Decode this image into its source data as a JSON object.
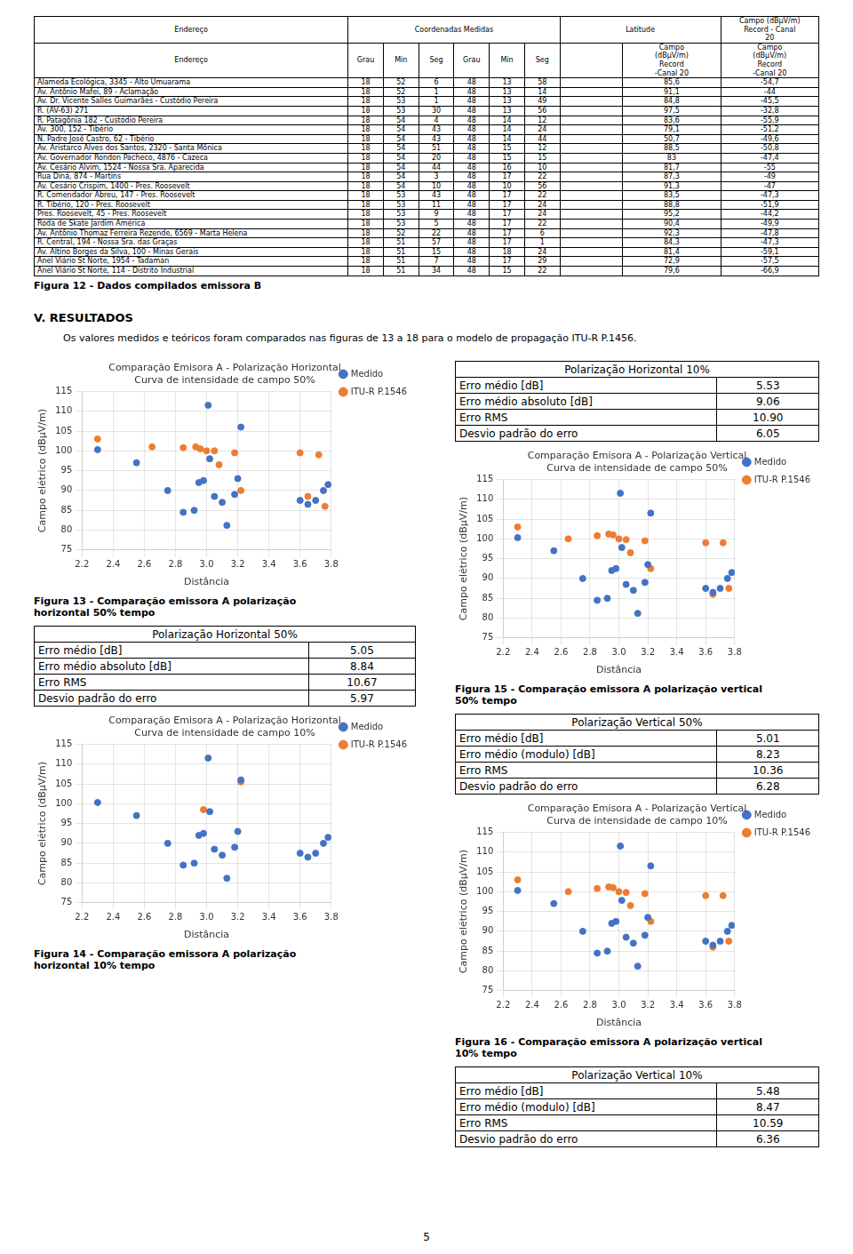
{
  "chart_data": [
    {
      "type": "scatter",
      "title": "Comparação Emisora A - Polarização Horizontal\nCurva de intensidade de campo 50%",
      "x_label": "Distância",
      "y_label": "Campo elétrico (dBμV/m)",
      "xlim": [
        2.2,
        3.8
      ],
      "ylim": [
        75,
        115
      ],
      "xticks": [
        2.2,
        2.4,
        2.6,
        2.8,
        {
          "value": 3.0,
          "label": "3.0"
        },
        3.2,
        3.4,
        3.6,
        3.8
      ],
      "yticks": [
        75,
        80,
        85,
        90,
        95,
        100,
        105,
        110,
        115
      ],
      "grid": true,
      "legend": "right",
      "series": [
        {
          "name": "Medido",
          "color": "#4472c4",
          "marker": "circle",
          "x": [
            2.3,
            2.55,
            2.75,
            2.85,
            2.92,
            2.95,
            2.98,
            3.01,
            3.02,
            3.05,
            3.1,
            3.13,
            3.18,
            3.2,
            3.22,
            3.6,
            3.65,
            3.7,
            3.75,
            3.78
          ],
          "values": [
            100.3,
            97,
            90,
            84.5,
            85,
            92,
            92.5,
            111.5,
            98,
            88.5,
            87,
            81.2,
            89,
            93,
            106,
            87.5,
            86.5,
            87.5,
            90,
            91.5
          ]
        },
        {
          "name": "ITU-R P.1546",
          "color": "#ed7d31",
          "marker": "circle",
          "x": [
            2.3,
            2.65,
            2.85,
            2.93,
            2.96,
            3.0,
            3.05,
            3.08,
            3.18,
            3.22,
            3.6,
            3.65,
            3.72,
            3.76
          ],
          "values": [
            103,
            101,
            100.8,
            101,
            100.5,
            100,
            100,
            96.5,
            99.5,
            90,
            99.5,
            88.5,
            99,
            86
          ]
        }
      ],
      "caption": "Figura 13 - Comparação emissora A polarização\nhorizontal 50% tempo"
    },
    {
      "type": "scatter",
      "title": "Comparação Emisora A - Polarização Horizontal\nCurva de intensidade de campo 10%",
      "x_label": "Distância",
      "y_label": "Campo elétrico (dBμV/m)",
      "xlim": [
        2.2,
        3.8
      ],
      "ylim": [
        75,
        115
      ],
      "xticks": [
        2.2,
        2.4,
        2.6,
        2.8,
        {
          "value": 3.0,
          "label": "3.0"
        },
        3.2,
        3.4,
        3.6,
        3.8
      ],
      "yticks": [
        75,
        80,
        85,
        90,
        95,
        100,
        105,
        110,
        115
      ],
      "grid": true,
      "legend": "right",
      "series": [
        {
          "name": "Medido",
          "color": "#4472c4",
          "marker": "circle",
          "x": [
            2.3,
            2.55,
            2.75,
            2.85,
            2.92,
            2.95,
            2.98,
            3.01,
            3.02,
            3.05,
            3.1,
            3.13,
            3.18,
            3.2,
            3.22,
            3.6,
            3.65,
            3.7,
            3.75,
            3.78
          ],
          "values": [
            100.3,
            97,
            90,
            84.5,
            85,
            92,
            92.5,
            111.5,
            98,
            88.5,
            87,
            81.2,
            89,
            93,
            106,
            87.5,
            86.5,
            87.5,
            90,
            91.5
          ]
        },
        {
          "name": "ITU-R P.1546",
          "color": "#ed7d31",
          "marker": "circle",
          "x": [
            2.98,
            3.22
          ],
          "values": [
            98.5,
            105.5
          ]
        }
      ],
      "caption": "Figura 14 - Comparação emissora A polarização\nhorizontal 10% tempo"
    },
    {
      "type": "scatter",
      "title": "Comparação Emisora A - Polarização Vertical\nCurva de intensidade de campo 50%",
      "x_label": "Distância",
      "y_label": "Campo elétrico (dBμV/m)",
      "xlim": [
        2.2,
        3.8
      ],
      "ylim": [
        75,
        115
      ],
      "xticks": [
        2.2,
        2.4,
        2.6,
        2.8,
        {
          "value": 3.0,
          "label": "3.0"
        },
        3.2,
        3.4,
        3.6,
        3.8
      ],
      "yticks": [
        75,
        80,
        85,
        90,
        95,
        100,
        105,
        110,
        115
      ],
      "grid": true,
      "legend": "right",
      "series": [
        {
          "name": "Medido",
          "color": "#4472c4",
          "marker": "circle",
          "x": [
            2.3,
            2.55,
            2.75,
            2.85,
            2.92,
            2.95,
            2.98,
            3.01,
            3.02,
            3.05,
            3.1,
            3.13,
            3.18,
            3.2,
            3.22,
            3.6,
            3.65,
            3.7,
            3.75,
            3.78
          ],
          "values": [
            100.3,
            97,
            90,
            84.5,
            85,
            92,
            92.5,
            111.5,
            97.8,
            88.5,
            87,
            81.2,
            89,
            93.5,
            106.5,
            87.5,
            86.5,
            87.5,
            90,
            91.5
          ]
        },
        {
          "name": "ITU-R P.1546",
          "color": "#ed7d31",
          "marker": "circle",
          "x": [
            2.3,
            2.65,
            2.85,
            2.93,
            2.96,
            3.0,
            3.05,
            3.08,
            3.18,
            3.22,
            3.6,
            3.65,
            3.72,
            3.76
          ],
          "values": [
            103,
            100,
            100.8,
            101.2,
            101,
            100,
            99.8,
            96.5,
            99.5,
            92.5,
            99,
            86,
            99,
            87.5
          ]
        }
      ],
      "caption": "Figura 15 - Comparação emissora A polarização vertical\n50% tempo"
    },
    {
      "type": "scatter",
      "title": "Comparação Emisora A - Polarização Vertical\nCurva de intensidade de campo 10%",
      "x_label": "Distância",
      "y_label": "Campo elétrico (dBμV/m)",
      "xlim": [
        2.2,
        3.8
      ],
      "ylim": [
        75,
        115
      ],
      "xticks": [
        2.2,
        2.4,
        2.6,
        2.8,
        {
          "value": 3.0,
          "label": "3.0"
        },
        3.2,
        3.4,
        3.6,
        3.8
      ],
      "yticks": [
        75,
        80,
        85,
        90,
        95,
        100,
        105,
        110,
        115
      ],
      "grid": true,
      "legend": "right",
      "series": [
        {
          "name": "Medido",
          "color": "#4472c4",
          "marker": "circle",
          "x": [
            2.3,
            2.55,
            2.75,
            2.85,
            2.92,
            2.95,
            2.98,
            3.01,
            3.02,
            3.05,
            3.1,
            3.13,
            3.18,
            3.2,
            3.22,
            3.6,
            3.65,
            3.7,
            3.75,
            3.78
          ],
          "values": [
            100.3,
            97,
            90,
            84.5,
            85,
            92,
            92.5,
            111.5,
            97.8,
            88.5,
            87,
            81.2,
            89,
            93.5,
            106.5,
            87.5,
            86.5,
            87.5,
            90,
            91.5
          ]
        },
        {
          "name": "ITU-R P.1546",
          "color": "#ed7d31",
          "marker": "circle",
          "x": [
            2.3,
            2.65,
            2.85,
            2.93,
            2.96,
            3.0,
            3.05,
            3.08,
            3.18,
            3.22,
            3.6,
            3.65,
            3.72,
            3.76
          ],
          "values": [
            103,
            100,
            100.8,
            101.2,
            101,
            100,
            99.8,
            96.5,
            99.5,
            92.5,
            99,
            86,
            99,
            87.5
          ]
        }
      ],
      "caption": "Figura 16 - Comparação emissora A polarização vertical\n10% tempo"
    }
  ],
  "header_table": {
    "header_row1": [
      "Endereço",
      "Coordenadas Medidas",
      "Latitude",
      "Campo (dBμV/m)\nRecord - Canal\n20"
    ],
    "header_row2": [
      "Endereço",
      "Grau",
      "Min",
      "Seg",
      "Grau",
      "Min",
      "Seg",
      null,
      "Campo\n(dBμV/m)\nRecord\n-Canal 20",
      "Campo\n(dBμV/m)\nRecord\n-Canal 20"
    ],
    "rows": [
      [
        "Alameda Ecológica, 3345 - Alto Umuarama",
        "18",
        "52",
        "6",
        "48",
        "13",
        "58",
        "85,6",
        "-54,7"
      ],
      [
        "Av. Antônio Mafei, 89 - Aclamação",
        "18",
        "52",
        "1",
        "48",
        "13",
        "14",
        "91,1",
        "-44"
      ],
      [
        "Av. Dr. Vicente Salles Guimarães - Custódio Pereira",
        "18",
        "53",
        "1",
        "48",
        "13",
        "49",
        "84,8",
        "-45,5"
      ],
      [
        "R. (AV-63) 271",
        "18",
        "53",
        "30",
        "48",
        "13",
        "56",
        "97,5",
        "-32,8"
      ],
      [
        "R. Patagônia 182 - Custódio Pereira",
        "18",
        "54",
        "4",
        "48",
        "14",
        "12",
        "83,6",
        "-55,9"
      ],
      [
        "Av. 300, 152 - Tibério",
        "18",
        "54",
        "43",
        "48",
        "14",
        "24",
        "79,1",
        "-51,2"
      ],
      [
        "N. Padre José Castro, 62 - Tibério",
        "18",
        "54",
        "43",
        "48",
        "14",
        "44",
        "50,7",
        "-49,6"
      ],
      [
        "Av. Aristarco Alves dos Santos, 2320 - Santa Mônica",
        "18",
        "54",
        "51",
        "48",
        "15",
        "12",
        "88,5",
        "-50,8"
      ],
      [
        "Av. Governador Rondon Pacheco, 4876 - Cazeca",
        "18",
        "54",
        "20",
        "48",
        "15",
        "15",
        "83",
        "-47,4"
      ],
      [
        "Av. Cesário Alvim, 1524 - Nossa Sra. Aparecida",
        "18",
        "54",
        "44",
        "48",
        "16",
        "10",
        "81,7",
        "-55"
      ],
      [
        "Rua Diná, 874 - Martins",
        "18",
        "54",
        "3",
        "48",
        "17",
        "22",
        "87,3",
        "-49"
      ],
      [
        "Av. Cesário Crispim, 1400 - Pres. Roosevelt",
        "18",
        "54",
        "10",
        "48",
        "10",
        "56",
        "91,3",
        "-47"
      ],
      [
        "R. Comendador Abreu, 147 - Pres. Roosevelt",
        "18",
        "53",
        "43",
        "48",
        "17",
        "22",
        "83,5",
        "-47,3"
      ],
      [
        "R. Tibério, 120 - Pres. Roosevelt",
        "18",
        "53",
        "11",
        "48",
        "17",
        "24",
        "88,8",
        "-51,9"
      ],
      [
        "Pres. Roosevelt, 45 - Pres. Roosevelt",
        "18",
        "53",
        "9",
        "48",
        "17",
        "24",
        "95,2",
        "-44,2"
      ],
      [
        "Roda de Skate Jardim América",
        "18",
        "53",
        "5",
        "48",
        "17",
        "22",
        "90,4",
        "-49,9"
      ],
      [
        "Av. Antônio Thomaz Ferreira Rezende, 6569 - Marta Helena",
        "18",
        "52",
        "22",
        "48",
        "17",
        "6",
        "92,3",
        "-47,8"
      ],
      [
        "R. Central, 194 - Nossa Sra. das Graças",
        "18",
        "51",
        "57",
        "48",
        "17",
        "1",
        "84,3",
        "-47,3"
      ],
      [
        "Av. Altino Borges da Silva, 100 - Minas Gerais",
        "18",
        "51",
        "15",
        "48",
        "18",
        "24",
        "81,4",
        "-59,1"
      ],
      [
        "Anel Viário St Norte, 1954 - Tadaman",
        "18",
        "51",
        "7",
        "48",
        "17",
        "29",
        "72,9",
        "-57,5"
      ],
      [
        "Anel Viário St Norte, 114 - Distrito Industrial",
        "18",
        "51",
        "34",
        "48",
        "15",
        "22",
        "79,6",
        "-66,9"
      ]
    ],
    "caption": "Figura 12 - Dados compilados emissora B"
  },
  "section_title": "V. RESULTADOS",
  "section_text": "Os valores medidos e teóricos foram comparados nas figuras de 13 a 18 para o modelo de propagação ITU-R P.1456.",
  "tables": [
    {
      "title": "Polarização Horizontal 10%",
      "rows": [
        [
          "Erro médio [dB]",
          "5.53"
        ],
        [
          "Erro médio absoluto [dB]",
          "9.06"
        ],
        [
          "Erro RMS",
          "10.90"
        ],
        [
          "Desvio padrão do erro",
          "6.05"
        ]
      ]
    },
    {
      "title": "Polarização Horizontal 50%",
      "rows": [
        [
          "Erro médio [dB]",
          "5.05"
        ],
        [
          "Erro médio absoluto [dB]",
          "8.84"
        ],
        [
          "Erro RMS",
          "10.67"
        ],
        [
          "Desvio padrão do erro",
          "5.97"
        ]
      ]
    },
    {
      "title": "Polarização Vertical 50%",
      "rows": [
        [
          "Erro médio [dB]",
          "5.01"
        ],
        [
          "Erro médio (modulo) [dB]",
          "8.23"
        ],
        [
          "Erro RMS",
          "10.36"
        ],
        [
          "Desvio padrão do erro",
          "6.28"
        ]
      ]
    },
    {
      "title": "Polarização Vertical 10%",
      "rows": [
        [
          "Erro médio [dB]",
          "5.48"
        ],
        [
          "Erro médio (modulo) [dB]",
          "8.47"
        ],
        [
          "Erro RMS",
          "10.59"
        ],
        [
          "Desvio padrão do erro",
          "6.36"
        ]
      ]
    }
  ],
  "page_number": "5"
}
